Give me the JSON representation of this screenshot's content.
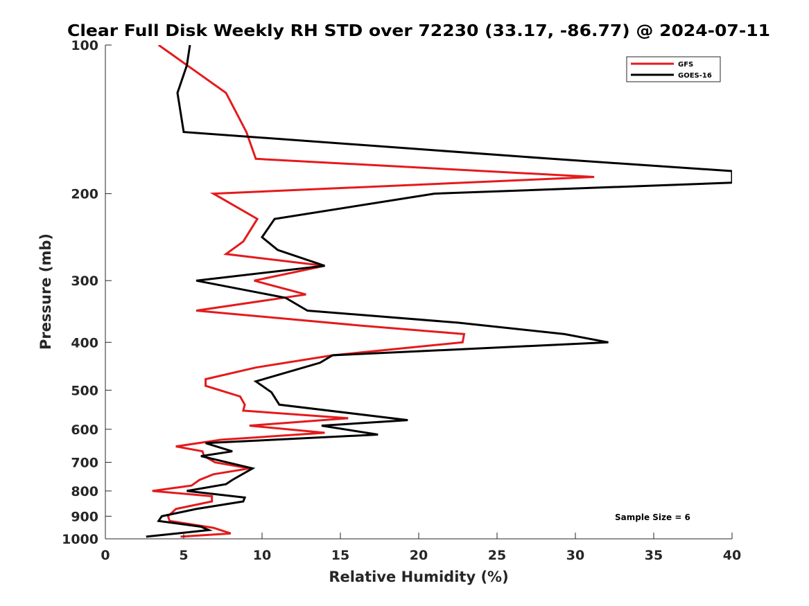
{
  "chart_data": {
    "type": "line",
    "title": "Clear Full Disk Weekly RH STD over 72230 (33.17, -86.77) @ 2024-07-11",
    "xlabel": "Relative Humidity (%)",
    "ylabel": "Pressure (mb)",
    "xlim": [
      0,
      40
    ],
    "ylim": [
      100,
      1000
    ],
    "yscale": "log",
    "y_reversed": true,
    "grid": false,
    "x_ticks": [
      0,
      5,
      10,
      15,
      20,
      25,
      30,
      35,
      40
    ],
    "y_ticks": [
      100,
      200,
      300,
      400,
      500,
      600,
      700,
      800,
      900,
      1000
    ],
    "legend_position": "top-right",
    "annotation": "Sample Size = 6",
    "series": [
      {
        "name": "GFS",
        "color": "#e41a1c",
        "points": [
          [
            3.4,
            100
          ],
          [
            7.7,
            125
          ],
          [
            9.0,
            150
          ],
          [
            9.6,
            170
          ],
          [
            31.2,
            185
          ],
          [
            6.9,
            200
          ],
          [
            9.7,
            225
          ],
          [
            8.8,
            250
          ],
          [
            7.7,
            265
          ],
          [
            14.0,
            280
          ],
          [
            9.5,
            300
          ],
          [
            12.8,
            320
          ],
          [
            5.8,
            345
          ],
          [
            16.3,
            370
          ],
          [
            22.9,
            385
          ],
          [
            22.8,
            400
          ],
          [
            14.5,
            425
          ],
          [
            9.6,
            450
          ],
          [
            6.4,
            475
          ],
          [
            6.4,
            490
          ],
          [
            8.6,
            515
          ],
          [
            8.9,
            535
          ],
          [
            8.8,
            550
          ],
          [
            15.5,
            570
          ],
          [
            9.2,
            590
          ],
          [
            14.0,
            610
          ],
          [
            7.4,
            630
          ],
          [
            4.5,
            650
          ],
          [
            6.2,
            665
          ],
          [
            6.3,
            680
          ],
          [
            7.0,
            700
          ],
          [
            9.2,
            720
          ],
          [
            6.9,
            740
          ],
          [
            6.0,
            760
          ],
          [
            5.5,
            780
          ],
          [
            3.0,
            800
          ],
          [
            6.8,
            820
          ],
          [
            6.8,
            840
          ],
          [
            4.5,
            870
          ],
          [
            4.0,
            900
          ],
          [
            4.1,
            920
          ],
          [
            6.9,
            950
          ],
          [
            8.0,
            975
          ],
          [
            4.8,
            990
          ]
        ]
      },
      {
        "name": "GOES-16",
        "color": "#000000",
        "points": [
          [
            5.4,
            100
          ],
          [
            5.2,
            110
          ],
          [
            4.6,
            125
          ],
          [
            5.0,
            150
          ],
          [
            28.5,
            170
          ],
          [
            40.0,
            180
          ],
          [
            40.0,
            190
          ],
          [
            21.0,
            200
          ],
          [
            10.8,
            225
          ],
          [
            10.0,
            245
          ],
          [
            11.0,
            260
          ],
          [
            14.0,
            280
          ],
          [
            5.8,
            300
          ],
          [
            11.5,
            325
          ],
          [
            12.9,
            345
          ],
          [
            22.5,
            365
          ],
          [
            29.3,
            385
          ],
          [
            32.1,
            400
          ],
          [
            14.5,
            425
          ],
          [
            13.7,
            440
          ],
          [
            9.6,
            480
          ],
          [
            10.6,
            505
          ],
          [
            11.1,
            535
          ],
          [
            19.3,
            575
          ],
          [
            13.8,
            590
          ],
          [
            17.4,
            615
          ],
          [
            6.4,
            640
          ],
          [
            8.1,
            665
          ],
          [
            6.1,
            680
          ],
          [
            9.4,
            720
          ],
          [
            8.1,
            760
          ],
          [
            7.7,
            775
          ],
          [
            5.2,
            800
          ],
          [
            8.9,
            825
          ],
          [
            8.8,
            840
          ],
          [
            5.8,
            870
          ],
          [
            3.6,
            900
          ],
          [
            3.4,
            920
          ],
          [
            6.1,
            945
          ],
          [
            6.6,
            960
          ],
          [
            2.6,
            990
          ]
        ]
      }
    ]
  }
}
